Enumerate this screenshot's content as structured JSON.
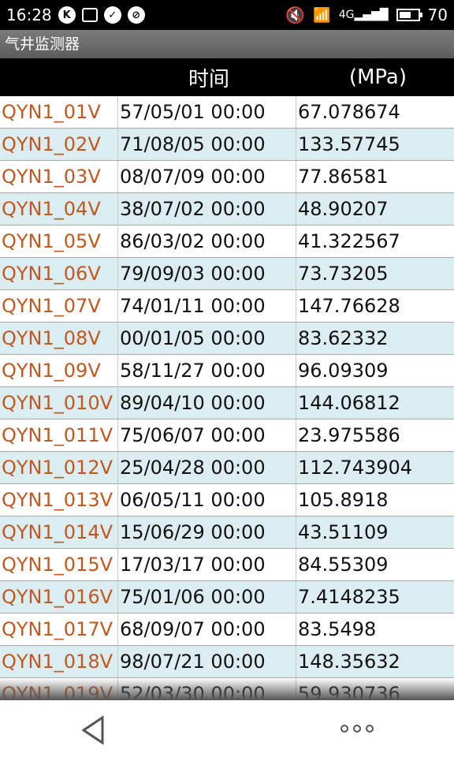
{
  "status_bar": {
    "time": "16:28",
    "battery": "70",
    "icons": [
      "k-icon",
      "image-icon",
      "check-icon",
      "block-icon",
      "mute-icon",
      "wifi-icon",
      "signal-4g-icon",
      "battery-icon"
    ]
  },
  "app": {
    "title": "气井监测器"
  },
  "table": {
    "headers": [
      "",
      "时间",
      "(MPa)"
    ],
    "rows": [
      {
        "id": "QYN1_01V",
        "time": "57/05/01 00:00",
        "value": "67.078674"
      },
      {
        "id": "QYN1_02V",
        "time": "71/08/05 00:00",
        "value": "133.57745"
      },
      {
        "id": "QYN1_03V",
        "time": "08/07/09 00:00",
        "value": "77.86581"
      },
      {
        "id": "QYN1_04V",
        "time": "38/07/02 00:00",
        "value": "48.90207"
      },
      {
        "id": "QYN1_05V",
        "time": "86/03/02 00:00",
        "value": "41.322567"
      },
      {
        "id": "QYN1_06V",
        "time": "79/09/03 00:00",
        "value": "73.73205"
      },
      {
        "id": "QYN1_07V",
        "time": "74/01/11 00:00",
        "value": "147.76628"
      },
      {
        "id": "QYN1_08V",
        "time": "00/01/05 00:00",
        "value": "83.62332"
      },
      {
        "id": "QYN1_09V",
        "time": "58/11/27 00:00",
        "value": "96.09309"
      },
      {
        "id": "QYN1_010V",
        "time": "89/04/10 00:00",
        "value": "144.06812"
      },
      {
        "id": "QYN1_011V",
        "time": "75/06/07 00:00",
        "value": "23.975586"
      },
      {
        "id": "QYN1_012V",
        "time": "25/04/28 00:00",
        "value": "112.743904"
      },
      {
        "id": "QYN1_013V",
        "time": "06/05/11 00:00",
        "value": "105.8918"
      },
      {
        "id": "QYN1_014V",
        "time": "15/06/29 00:00",
        "value": "43.51109"
      },
      {
        "id": "QYN1_015V",
        "time": "17/03/17 00:00",
        "value": "84.55309"
      },
      {
        "id": "QYN1_016V",
        "time": "75/01/06 00:00",
        "value": "7.4148235"
      },
      {
        "id": "QYN1_017V",
        "time": "68/09/07 00:00",
        "value": "83.5498"
      },
      {
        "id": "QYN1_018V",
        "time": "98/07/21 00:00",
        "value": "148.35632"
      },
      {
        "id": "QYN1_019V",
        "time": "52/03/30 00:00",
        "value": "59.930736"
      }
    ]
  },
  "nav": {
    "back_icon": "back-triangle-icon",
    "more_icon": "more-dots-icon"
  },
  "colors": {
    "id_text": "#c0581f",
    "alt_row": "#dcedf2",
    "header_bg": "#000000"
  }
}
